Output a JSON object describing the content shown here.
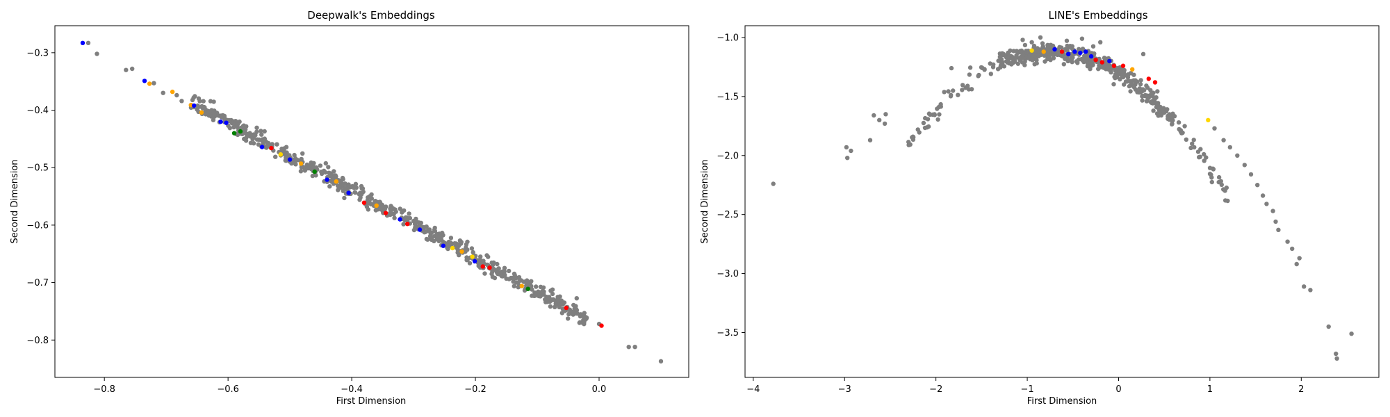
{
  "chart_data": [
    {
      "type": "scatter",
      "title": "Deepwalk's Embeddings",
      "xlabel": "First Dimension",
      "ylabel": "Second Dimension",
      "xlim": [
        -0.88,
        0.145
      ],
      "ylim": [
        -0.865,
        -0.253
      ],
      "xticks": [
        -0.8,
        -0.6,
        -0.4,
        -0.2,
        0.0
      ],
      "xtick_labels": [
        "−0.8",
        "−0.6",
        "−0.4",
        "−0.2",
        "0.0"
      ],
      "yticks": [
        -0.3,
        -0.4,
        -0.5,
        -0.6,
        -0.7,
        -0.8
      ],
      "ytick_labels": [
        "−0.3",
        "−0.4",
        "−0.5",
        "−0.6",
        "−0.7",
        "−0.8"
      ],
      "grid": false,
      "colors": {
        "gray": "#7f7f7f",
        "blue": "#0000ff",
        "red": "#ff0000",
        "orange": "#ffa500",
        "yellow": "#ffd700",
        "green": "#008000"
      },
      "generation": {
        "seed": 7,
        "n": 620,
        "line": {
          "x0": -0.83,
          "y0": -0.285,
          "x1": 0.0,
          "y1": -0.775
        },
        "xrange": [
          -0.66,
          -0.02
        ],
        "jitter": 0.007
      },
      "points": [
        {
          "x": -0.835,
          "y": -0.283,
          "c": "blue"
        },
        {
          "x": -0.826,
          "y": -0.283,
          "c": "gray"
        },
        {
          "x": -0.812,
          "y": -0.302,
          "c": "gray"
        },
        {
          "x": -0.765,
          "y": -0.33,
          "c": "gray"
        },
        {
          "x": -0.755,
          "y": -0.328,
          "c": "gray"
        },
        {
          "x": -0.735,
          "y": -0.349,
          "c": "blue"
        },
        {
          "x": -0.727,
          "y": -0.354,
          "c": "orange"
        },
        {
          "x": -0.72,
          "y": -0.353,
          "c": "gray"
        },
        {
          "x": -0.705,
          "y": -0.37,
          "c": "gray"
        },
        {
          "x": -0.69,
          "y": -0.368,
          "c": "orange"
        },
        {
          "x": -0.683,
          "y": -0.374,
          "c": "gray"
        },
        {
          "x": -0.675,
          "y": -0.384,
          "c": "gray"
        },
        {
          "x": -0.66,
          "y": -0.391,
          "c": "orange"
        },
        {
          "x": -0.655,
          "y": -0.392,
          "c": "blue"
        },
        {
          "x": -0.643,
          "y": -0.404,
          "c": "orange"
        },
        {
          "x": -0.627,
          "y": -0.411,
          "c": "gray"
        },
        {
          "x": -0.612,
          "y": -0.42,
          "c": "blue"
        },
        {
          "x": -0.603,
          "y": -0.422,
          "c": "blue"
        },
        {
          "x": -0.59,
          "y": -0.44,
          "c": "green"
        },
        {
          "x": -0.58,
          "y": -0.437,
          "c": "green"
        },
        {
          "x": -0.57,
          "y": -0.447,
          "c": "gray"
        },
        {
          "x": -0.545,
          "y": -0.464,
          "c": "blue"
        },
        {
          "x": -0.53,
          "y": -0.466,
          "c": "red"
        },
        {
          "x": -0.515,
          "y": -0.477,
          "c": "yellow"
        },
        {
          "x": -0.5,
          "y": -0.486,
          "c": "blue"
        },
        {
          "x": -0.482,
          "y": -0.493,
          "c": "orange"
        },
        {
          "x": -0.46,
          "y": -0.507,
          "c": "green"
        },
        {
          "x": -0.44,
          "y": -0.521,
          "c": "blue"
        },
        {
          "x": -0.425,
          "y": -0.524,
          "c": "orange"
        },
        {
          "x": -0.405,
          "y": -0.544,
          "c": "blue"
        },
        {
          "x": -0.38,
          "y": -0.561,
          "c": "red"
        },
        {
          "x": -0.36,
          "y": -0.566,
          "c": "orange"
        },
        {
          "x": -0.345,
          "y": -0.579,
          "c": "red"
        },
        {
          "x": -0.322,
          "y": -0.59,
          "c": "blue"
        },
        {
          "x": -0.31,
          "y": -0.598,
          "c": "red"
        },
        {
          "x": -0.29,
          "y": -0.608,
          "c": "blue"
        },
        {
          "x": -0.27,
          "y": -0.621,
          "c": "gray"
        },
        {
          "x": -0.252,
          "y": -0.636,
          "c": "blue"
        },
        {
          "x": -0.237,
          "y": -0.64,
          "c": "yellow"
        },
        {
          "x": -0.222,
          "y": -0.646,
          "c": "orange"
        },
        {
          "x": -0.205,
          "y": -0.655,
          "c": "yellow"
        },
        {
          "x": -0.201,
          "y": -0.663,
          "c": "blue"
        },
        {
          "x": -0.188,
          "y": -0.672,
          "c": "red"
        },
        {
          "x": -0.177,
          "y": -0.674,
          "c": "red"
        },
        {
          "x": -0.15,
          "y": -0.693,
          "c": "gray"
        },
        {
          "x": -0.125,
          "y": -0.706,
          "c": "orange"
        },
        {
          "x": -0.115,
          "y": -0.711,
          "c": "green"
        },
        {
          "x": -0.085,
          "y": -0.725,
          "c": "gray"
        },
        {
          "x": -0.07,
          "y": -0.737,
          "c": "gray"
        },
        {
          "x": -0.053,
          "y": -0.744,
          "c": "red"
        },
        {
          "x": -0.035,
          "y": -0.754,
          "c": "gray"
        },
        {
          "x": -0.022,
          "y": -0.76,
          "c": "gray"
        },
        {
          "x": 0.0,
          "y": -0.772,
          "c": "gray"
        },
        {
          "x": 0.004,
          "y": -0.775,
          "c": "red"
        },
        {
          "x": 0.048,
          "y": -0.812,
          "c": "gray"
        },
        {
          "x": 0.058,
          "y": -0.812,
          "c": "gray"
        },
        {
          "x": 0.1,
          "y": -0.837,
          "c": "gray"
        }
      ]
    },
    {
      "type": "scatter",
      "title": "LINE's Embeddings",
      "xlabel": "First Dimension",
      "ylabel": "Second Dimension",
      "xlim": [
        -4.09,
        2.85
      ],
      "ylim": [
        -3.88,
        -0.9
      ],
      "xticks": [
        -4,
        -3,
        -2,
        -1,
        0,
        1,
        2
      ],
      "xtick_labels": [
        "−4",
        "−3",
        "−2",
        "−1",
        "0",
        "1",
        "2"
      ],
      "yticks": [
        -1.0,
        -1.5,
        -2.0,
        -2.5,
        -3.0,
        -3.5
      ],
      "ytick_labels": [
        "−1.0",
        "−1.5",
        "−2.0",
        "−2.5",
        "−3.0",
        "−3.5"
      ],
      "grid": false,
      "colors": {
        "gray": "#7f7f7f",
        "blue": "#0000ff",
        "red": "#ff0000",
        "orange": "#ffa500",
        "yellow": "#ffd700",
        "green": "#008000"
      },
      "generation": {
        "seed": 11,
        "n": 520,
        "curve": {
          "vertex_x": -0.75,
          "vertex_y": -1.12,
          "a": -0.32
        },
        "xrange": [
          -2.3,
          1.2
        ],
        "jitter": 0.04
      },
      "points": [
        {
          "x": -3.78,
          "y": -2.24,
          "c": "gray"
        },
        {
          "x": -2.98,
          "y": -1.93,
          "c": "gray"
        },
        {
          "x": -2.97,
          "y": -2.02,
          "c": "gray"
        },
        {
          "x": -2.93,
          "y": -1.96,
          "c": "gray"
        },
        {
          "x": -2.72,
          "y": -1.87,
          "c": "gray"
        },
        {
          "x": -2.68,
          "y": -1.66,
          "c": "gray"
        },
        {
          "x": -2.62,
          "y": -1.7,
          "c": "gray"
        },
        {
          "x": -2.56,
          "y": -1.73,
          "c": "gray"
        },
        {
          "x": -2.55,
          "y": -1.65,
          "c": "gray"
        },
        {
          "x": -1.83,
          "y": -1.26,
          "c": "gray"
        },
        {
          "x": -1.05,
          "y": -1.02,
          "c": "gray"
        },
        {
          "x": -0.95,
          "y": -1.04,
          "c": "gray"
        },
        {
          "x": -0.4,
          "y": -1.01,
          "c": "gray"
        },
        {
          "x": -0.2,
          "y": -1.04,
          "c": "gray"
        },
        {
          "x": 0.27,
          "y": -1.14,
          "c": "gray"
        },
        {
          "x": -0.95,
          "y": -1.11,
          "c": "yellow"
        },
        {
          "x": -0.82,
          "y": -1.12,
          "c": "orange"
        },
        {
          "x": -0.7,
          "y": -1.1,
          "c": "blue"
        },
        {
          "x": -0.62,
          "y": -1.12,
          "c": "red"
        },
        {
          "x": -0.55,
          "y": -1.14,
          "c": "blue"
        },
        {
          "x": -0.48,
          "y": -1.12,
          "c": "blue"
        },
        {
          "x": -0.42,
          "y": -1.13,
          "c": "blue"
        },
        {
          "x": -0.36,
          "y": -1.12,
          "c": "blue"
        },
        {
          "x": -0.3,
          "y": -1.16,
          "c": "blue"
        },
        {
          "x": -0.25,
          "y": -1.19,
          "c": "red"
        },
        {
          "x": -0.18,
          "y": -1.21,
          "c": "red"
        },
        {
          "x": -0.1,
          "y": -1.2,
          "c": "blue"
        },
        {
          "x": -0.05,
          "y": -1.24,
          "c": "red"
        },
        {
          "x": 0.05,
          "y": -1.24,
          "c": "red"
        },
        {
          "x": 0.15,
          "y": -1.27,
          "c": "orange"
        },
        {
          "x": 0.33,
          "y": -1.35,
          "c": "red"
        },
        {
          "x": 0.4,
          "y": -1.38,
          "c": "red"
        },
        {
          "x": 0.98,
          "y": -1.7,
          "c": "yellow"
        },
        {
          "x": 1.05,
          "y": -1.77,
          "c": "gray"
        },
        {
          "x": 1.15,
          "y": -1.87,
          "c": "gray"
        },
        {
          "x": 1.22,
          "y": -1.93,
          "c": "gray"
        },
        {
          "x": 1.3,
          "y": -2.0,
          "c": "gray"
        },
        {
          "x": 1.38,
          "y": -2.08,
          "c": "gray"
        },
        {
          "x": 1.45,
          "y": -2.16,
          "c": "gray"
        },
        {
          "x": 1.52,
          "y": -2.25,
          "c": "gray"
        },
        {
          "x": 1.58,
          "y": -2.34,
          "c": "gray"
        },
        {
          "x": 1.62,
          "y": -2.41,
          "c": "gray"
        },
        {
          "x": 1.69,
          "y": -2.47,
          "c": "gray"
        },
        {
          "x": 1.72,
          "y": -2.56,
          "c": "gray"
        },
        {
          "x": 1.75,
          "y": -2.63,
          "c": "gray"
        },
        {
          "x": 1.85,
          "y": -2.73,
          "c": "gray"
        },
        {
          "x": 1.9,
          "y": -2.79,
          "c": "gray"
        },
        {
          "x": 1.95,
          "y": -2.92,
          "c": "gray"
        },
        {
          "x": 1.98,
          "y": -2.87,
          "c": "gray"
        },
        {
          "x": 2.03,
          "y": -3.11,
          "c": "gray"
        },
        {
          "x": 2.1,
          "y": -3.14,
          "c": "gray"
        },
        {
          "x": 2.3,
          "y": -3.45,
          "c": "gray"
        },
        {
          "x": 2.38,
          "y": -3.68,
          "c": "gray"
        },
        {
          "x": 2.39,
          "y": -3.72,
          "c": "gray"
        },
        {
          "x": 2.55,
          "y": -3.51,
          "c": "gray"
        }
      ]
    }
  ]
}
